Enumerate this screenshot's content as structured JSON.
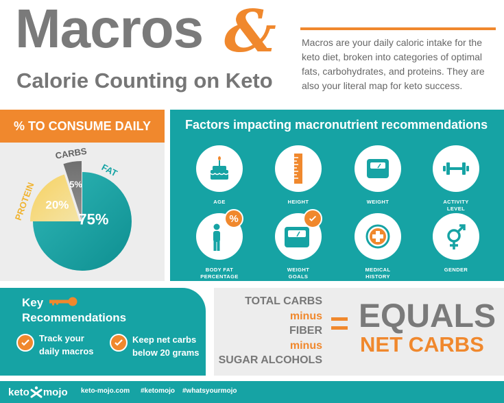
{
  "header": {
    "title": "Macros",
    "ampersand": "&",
    "subtitle": "Calorie Counting on Keto",
    "description": "Macros are your daily caloric intake for the keto diet, broken into categories of optimal fats, carbohydrates, and proteins. They are also your literal map for keto success."
  },
  "consume": {
    "banner": "% TO CONSUME DAILY"
  },
  "chart_data": {
    "type": "pie",
    "title": "",
    "slices": [
      {
        "label": "FAT",
        "value": 75,
        "value_label": "75%",
        "color": "#16a3a4"
      },
      {
        "label": "PROTEIN",
        "value": 20,
        "value_label": "20%",
        "color": "#f5c84a"
      },
      {
        "label": "CARBS",
        "value": 5,
        "value_label": "5%",
        "color": "#7a7a7a"
      }
    ]
  },
  "factors": {
    "title": "Factors impacting macronutrient recommendations",
    "items": [
      {
        "label": "AGE",
        "icon": "cake-icon"
      },
      {
        "label": "HEIGHT",
        "icon": "ruler-icon"
      },
      {
        "label": "WEIGHT",
        "icon": "scale-icon"
      },
      {
        "label": "ACTIVITY\nLEVEL",
        "icon": "dumbbell-icon"
      },
      {
        "label": "BODY FAT\nPERCENTAGE",
        "icon": "person-percent-icon",
        "badge": "%"
      },
      {
        "label": "WEIGHT\nGOALS",
        "icon": "scale-check-icon"
      },
      {
        "label": "MEDICAL\nHISTORY",
        "icon": "medical-cross-icon"
      },
      {
        "label": "GENDER",
        "icon": "gender-icon"
      }
    ]
  },
  "key_recommendations": {
    "title_line1": "Key",
    "title_line2": "Recommendations",
    "items": [
      {
        "line1": "Track your",
        "line2": "daily macros"
      },
      {
        "line1": "Keep net carbs",
        "line2": "below 20 grams"
      }
    ]
  },
  "net_carbs": {
    "lines": [
      "TOTAL CARBS",
      "minus",
      "FIBER",
      "minus",
      "SUGAR ALCOHOLS"
    ],
    "equals": "EQUALS",
    "result": "NET CARBS"
  },
  "footer": {
    "logo_left": "keto",
    "logo_right": "mojo",
    "site": "keto-mojo.com",
    "tag1": "#ketomojo",
    "tag2": "#whatsyourmojo"
  },
  "colors": {
    "teal": "#16a3a4",
    "orange": "#f0882d",
    "grey": "#7a7a7a",
    "yellow": "#f5c84a"
  }
}
